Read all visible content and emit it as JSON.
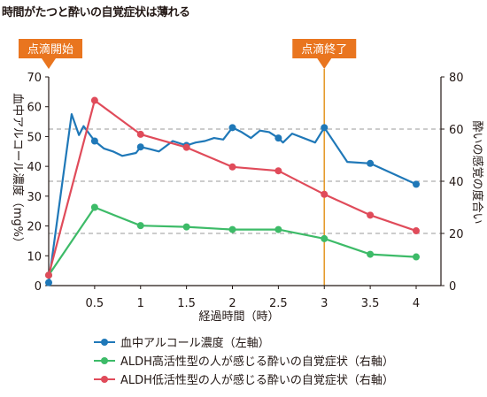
{
  "page": {
    "title": "時間がたつと酔いの自覚症状は薄れる"
  },
  "chart_data": {
    "type": "line",
    "xlabel": "経過時間（時）",
    "ylabel_left": "血中アルコール濃度（mg%）",
    "ylabel_right": "酔いの感覚の度合い",
    "xlim": [
      0,
      4
    ],
    "x_ticks": [
      0.5,
      1,
      1.5,
      2,
      2.5,
      3,
      3.5,
      4
    ],
    "x_tick_labels": [
      "0.5",
      "1",
      "1.5",
      "2",
      "2.5",
      "3",
      "3.5",
      "4"
    ],
    "ylim_left": [
      0,
      70
    ],
    "y_ticks_left": [
      0,
      10,
      20,
      30,
      40,
      50,
      60,
      70
    ],
    "ylim_right": [
      0,
      80
    ],
    "y_ticks_right": [
      0,
      20,
      40,
      60,
      80
    ],
    "grid": "dashed horizontal lines at right-axis 20, 40, 60",
    "annotations": [
      {
        "text": "点滴開始",
        "x": 0
      },
      {
        "text": "点滴終了",
        "x": 3
      }
    ],
    "legend_position": "bottom",
    "series": [
      {
        "name": "血中アルコール濃度（左軸）",
        "axis": "left",
        "color": "#1f78b8",
        "x": [
          0,
          0.25,
          0.33,
          0.38,
          0.5,
          0.6,
          0.7,
          0.8,
          0.95,
          1,
          1.1,
          1.2,
          1.35,
          1.5,
          1.6,
          1.7,
          1.8,
          1.9,
          2,
          2.1,
          2.2,
          2.3,
          2.4,
          2.5,
          2.55,
          2.65,
          2.9,
          3,
          3.25,
          3.5,
          4
        ],
        "y": [
          1,
          57.5,
          50.5,
          53.5,
          48.5,
          46,
          45,
          43.5,
          44.5,
          46.5,
          45.8,
          45,
          48.5,
          47,
          48,
          48.5,
          49.5,
          49,
          53,
          51.5,
          49.5,
          52,
          51.5,
          49.5,
          48,
          51,
          48,
          53,
          41.5,
          41,
          34
        ],
        "markers_at": [
          0,
          0.5,
          1,
          1.5,
          2,
          2.5,
          3,
          3.5,
          4
        ]
      },
      {
        "name": "ALDH高活性型の人が感じる酔いの自覚症状（右軸）",
        "axis": "right",
        "color": "#3dbb68",
        "x": [
          0,
          0.5,
          1,
          1.5,
          2,
          2.5,
          3,
          3.5,
          4
        ],
        "y": [
          4,
          30,
          23,
          22.5,
          21.5,
          21.5,
          18,
          12,
          11
        ]
      },
      {
        "name": "ALDH低活性型の人が感じる酔いの自覚症状（右軸）",
        "axis": "right",
        "color": "#e04b5a",
        "x": [
          0,
          0.5,
          1,
          1.5,
          2,
          2.5,
          3,
          3.5,
          4
        ],
        "y": [
          4,
          71,
          58,
          53,
          45.5,
          44,
          35,
          27,
          21
        ]
      }
    ]
  }
}
